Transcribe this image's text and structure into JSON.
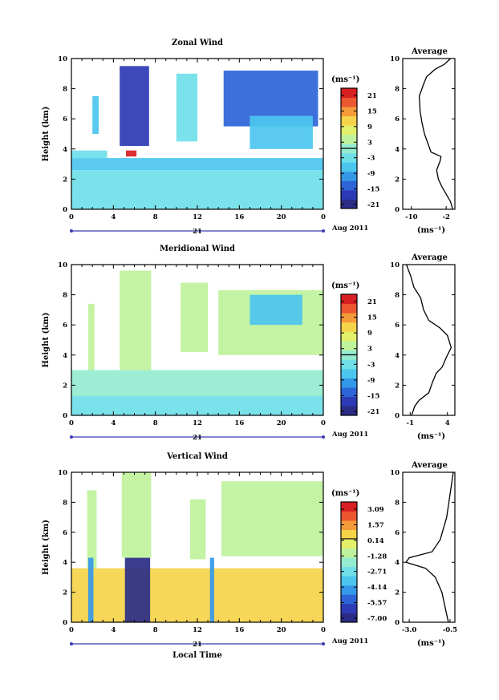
{
  "colors": {
    "zonal": [
      "#3133a8",
      "#2e55c8",
      "#2f84dd",
      "#38b4ee",
      "#4ed4f4",
      "#7deee8"
    ],
    "meridional": [
      "#3ad0ee",
      "#5fe4e8",
      "#8ff0c0",
      "#b9f08e",
      "#d9f06f"
    ],
    "vertical": [
      "#e2f57a",
      "#9ef2a6",
      "#cff384",
      "#1b2a8e",
      "#2f43c0",
      "#3ba2e6"
    ],
    "colorbar": [
      "#2a2c85",
      "#2c3ab5",
      "#2d64d8",
      "#3498e8",
      "#4cc6ef",
      "#6fdfe8",
      "#94ecd0",
      "#bff29c",
      "#e3f06a",
      "#f5d449",
      "#f59a38",
      "#ec5630",
      "#d81f22"
    ]
  },
  "chart_data": [
    {
      "type": "heatmap",
      "title": "Zonal Wind",
      "ylabel": "Height (km)",
      "xlim": [
        0,
        24
      ],
      "ylim": [
        0,
        10
      ],
      "xticks": [
        "0",
        "4",
        "8",
        "12",
        "16",
        "20",
        "0"
      ],
      "yticks": [
        "0",
        "2",
        "4",
        "6",
        "8",
        "10"
      ],
      "date_label": "21",
      "date_suffix": "Aug 2011",
      "colorbar": {
        "unit": "(ms⁻¹)",
        "ticks": [
          "21",
          "15",
          "9",
          "3",
          "-3",
          "-9",
          "-15",
          "-21"
        ]
      },
      "regions": [
        {
          "x": [
            0,
            24
          ],
          "y": [
            0,
            0.9
          ],
          "value": -4
        },
        {
          "x": [
            0,
            24
          ],
          "y": [
            0.9,
            2.6
          ],
          "value": -3
        },
        {
          "x": [
            0,
            24
          ],
          "y": [
            2.6,
            3.4
          ],
          "value": -5
        },
        {
          "x": [
            0,
            3.4
          ],
          "y": [
            3.4,
            3.9
          ],
          "value": -4
        },
        {
          "x": [
            2,
            2.6
          ],
          "y": [
            5,
            7.5
          ],
          "value": -5
        },
        {
          "x": [
            4.6,
            7.4
          ],
          "y": [
            4.2,
            9.5
          ],
          "value": -16
        },
        {
          "x": [
            5.2,
            6.2
          ],
          "y": [
            3.5,
            3.9
          ],
          "value": 19
        },
        {
          "x": [
            10,
            12
          ],
          "y": [
            4.5,
            9
          ],
          "value": -4
        },
        {
          "x": [
            14.5,
            23.5
          ],
          "y": [
            5.5,
            9.2
          ],
          "value": -14
        },
        {
          "x": [
            17,
            23
          ],
          "y": [
            4,
            6.2
          ],
          "value": -8
        }
      ]
    },
    {
      "type": "heatmap",
      "title": "Meridional Wind",
      "ylabel": "Height (km)",
      "xlim": [
        0,
        24
      ],
      "ylim": [
        0,
        10
      ],
      "xticks": [
        "0",
        "4",
        "8",
        "12",
        "16",
        "20",
        "0"
      ],
      "yticks": [
        "0",
        "2",
        "4",
        "6",
        "8",
        "10"
      ],
      "date_label": "21",
      "date_suffix": "Aug 2011",
      "colorbar": {
        "unit": "(ms⁻¹)",
        "ticks": [
          "21",
          "15",
          "9",
          "3",
          "-3",
          "-9",
          "-15",
          "-21"
        ]
      },
      "regions": [
        {
          "x": [
            0,
            24
          ],
          "y": [
            0,
            1.3
          ],
          "value": -4
        },
        {
          "x": [
            0,
            24
          ],
          "y": [
            1.3,
            3.0
          ],
          "value": -1
        },
        {
          "x": [
            1.6,
            2.2
          ],
          "y": [
            3,
            7.4
          ],
          "value": 2
        },
        {
          "x": [
            4.6,
            7.6
          ],
          "y": [
            3,
            9.6
          ],
          "value": 4
        },
        {
          "x": [
            10.4,
            13
          ],
          "y": [
            4.2,
            8.8
          ],
          "value": 3
        },
        {
          "x": [
            14,
            24
          ],
          "y": [
            4,
            8.3
          ],
          "value": 4
        },
        {
          "x": [
            17,
            22
          ],
          "y": [
            6,
            8
          ],
          "value": -5
        }
      ]
    },
    {
      "type": "heatmap",
      "title": "Vertical Wind",
      "ylabel": "Height (km)",
      "xlabel": "Local Time",
      "xlim": [
        0,
        24
      ],
      "ylim": [
        0,
        10
      ],
      "xticks": [
        "0",
        "4",
        "8",
        "12",
        "16",
        "20",
        "0"
      ],
      "yticks": [
        "0",
        "2",
        "4",
        "6",
        "8",
        "10"
      ],
      "date_label": "21",
      "date_suffix": "Aug 2011",
      "colorbar": {
        "unit": "(ms⁻¹)",
        "ticks": [
          "3.09",
          "1.57",
          "0.14",
          "-1.28",
          "-2.71",
          "-4.14",
          "-5.57",
          "-7.00"
        ]
      },
      "regions": [
        {
          "x": [
            0,
            24
          ],
          "y": [
            0,
            3.6
          ],
          "value": 0.2
        },
        {
          "x": [
            1.5,
            2.4
          ],
          "y": [
            3.6,
            8.8
          ],
          "value": -1.0
        },
        {
          "x": [
            4.8,
            7.6
          ],
          "y": [
            4.3,
            10
          ],
          "value": -1.5
        },
        {
          "x": [
            11.3,
            12.8
          ],
          "y": [
            4.2,
            8.2
          ],
          "value": -1.3
        },
        {
          "x": [
            14.3,
            24
          ],
          "y": [
            4.4,
            9.4
          ],
          "value": -1.2
        },
        {
          "x": [
            5.1,
            7.5
          ],
          "y": [
            0,
            4.3
          ],
          "value": -6.8
        },
        {
          "x": [
            1.6,
            2.1
          ],
          "y": [
            0,
            4.3
          ],
          "value": -4.5
        },
        {
          "x": [
            13.2,
            13.6
          ],
          "y": [
            0,
            4.3
          ],
          "value": -4.0
        }
      ]
    }
  ],
  "profiles": [
    {
      "title": "Average",
      "unit": "(ms⁻¹)",
      "xlim": [
        -12,
        0
      ],
      "xticks": [
        "-10",
        "-2"
      ],
      "xtick_values": [
        -10,
        -2
      ],
      "ylim": [
        0,
        10
      ],
      "yticks": [
        "0",
        "2",
        "4",
        "6",
        "8",
        "10"
      ],
      "points": [
        {
          "x": -0.5,
          "y": 0.0
        },
        {
          "x": -1.0,
          "y": 0.5
        },
        {
          "x": -2.0,
          "y": 1.0
        },
        {
          "x": -3.0,
          "y": 1.5
        },
        {
          "x": -3.8,
          "y": 2.0
        },
        {
          "x": -4.2,
          "y": 2.6
        },
        {
          "x": -3.4,
          "y": 3.2
        },
        {
          "x": -3.2,
          "y": 3.5
        },
        {
          "x": -5.5,
          "y": 3.8
        },
        {
          "x": -6.0,
          "y": 4.2
        },
        {
          "x": -7.0,
          "y": 5.0
        },
        {
          "x": -7.6,
          "y": 5.8
        },
        {
          "x": -8.0,
          "y": 6.5
        },
        {
          "x": -8.2,
          "y": 7.5
        },
        {
          "x": -7.2,
          "y": 8.3
        },
        {
          "x": -6.5,
          "y": 8.8
        },
        {
          "x": -4.5,
          "y": 9.3
        },
        {
          "x": -2.5,
          "y": 9.6
        },
        {
          "x": -1.0,
          "y": 10.0
        }
      ]
    },
    {
      "title": "Average",
      "unit": "(ms⁻¹)",
      "xlim": [
        -2,
        5
      ],
      "xticks": [
        "-1",
        "4"
      ],
      "xtick_values": [
        -1,
        4
      ],
      "ylim": [
        0,
        10
      ],
      "yticks": [
        "0",
        "2",
        "4",
        "6",
        "8",
        "10"
      ],
      "points": [
        {
          "x": -0.8,
          "y": 0.0
        },
        {
          "x": -0.4,
          "y": 0.6
        },
        {
          "x": 0.2,
          "y": 1.0
        },
        {
          "x": 1.5,
          "y": 1.5
        },
        {
          "x": 2.0,
          "y": 2.2
        },
        {
          "x": 2.5,
          "y": 2.8
        },
        {
          "x": 3.3,
          "y": 3.2
        },
        {
          "x": 3.8,
          "y": 3.8
        },
        {
          "x": 4.5,
          "y": 4.5
        },
        {
          "x": 4.0,
          "y": 5.3
        },
        {
          "x": 3.0,
          "y": 5.8
        },
        {
          "x": 1.5,
          "y": 6.3
        },
        {
          "x": 0.8,
          "y": 7.0
        },
        {
          "x": 0.4,
          "y": 7.8
        },
        {
          "x": -0.5,
          "y": 8.5
        },
        {
          "x": -0.9,
          "y": 9.2
        },
        {
          "x": -1.5,
          "y": 10.0
        }
      ]
    },
    {
      "title": "Average",
      "unit": "(ms⁻¹)",
      "xlim": [
        -3.4,
        -0.2
      ],
      "xticks": [
        "-3.0",
        "-0.5"
      ],
      "xtick_values": [
        -3.0,
        -0.5
      ],
      "ylim": [
        0,
        10
      ],
      "yticks": [
        "0",
        "2",
        "4",
        "6",
        "8",
        "10"
      ],
      "points": [
        {
          "x": -0.6,
          "y": 0.0
        },
        {
          "x": -0.8,
          "y": 1.0
        },
        {
          "x": -1.0,
          "y": 2.0
        },
        {
          "x": -1.4,
          "y": 3.0
        },
        {
          "x": -2.0,
          "y": 3.6
        },
        {
          "x": -3.2,
          "y": 4.0
        },
        {
          "x": -3.0,
          "y": 4.3
        },
        {
          "x": -1.6,
          "y": 4.7
        },
        {
          "x": -1.1,
          "y": 5.5
        },
        {
          "x": -0.7,
          "y": 7.0
        },
        {
          "x": -0.5,
          "y": 8.5
        },
        {
          "x": -0.3,
          "y": 10.0
        }
      ]
    }
  ]
}
